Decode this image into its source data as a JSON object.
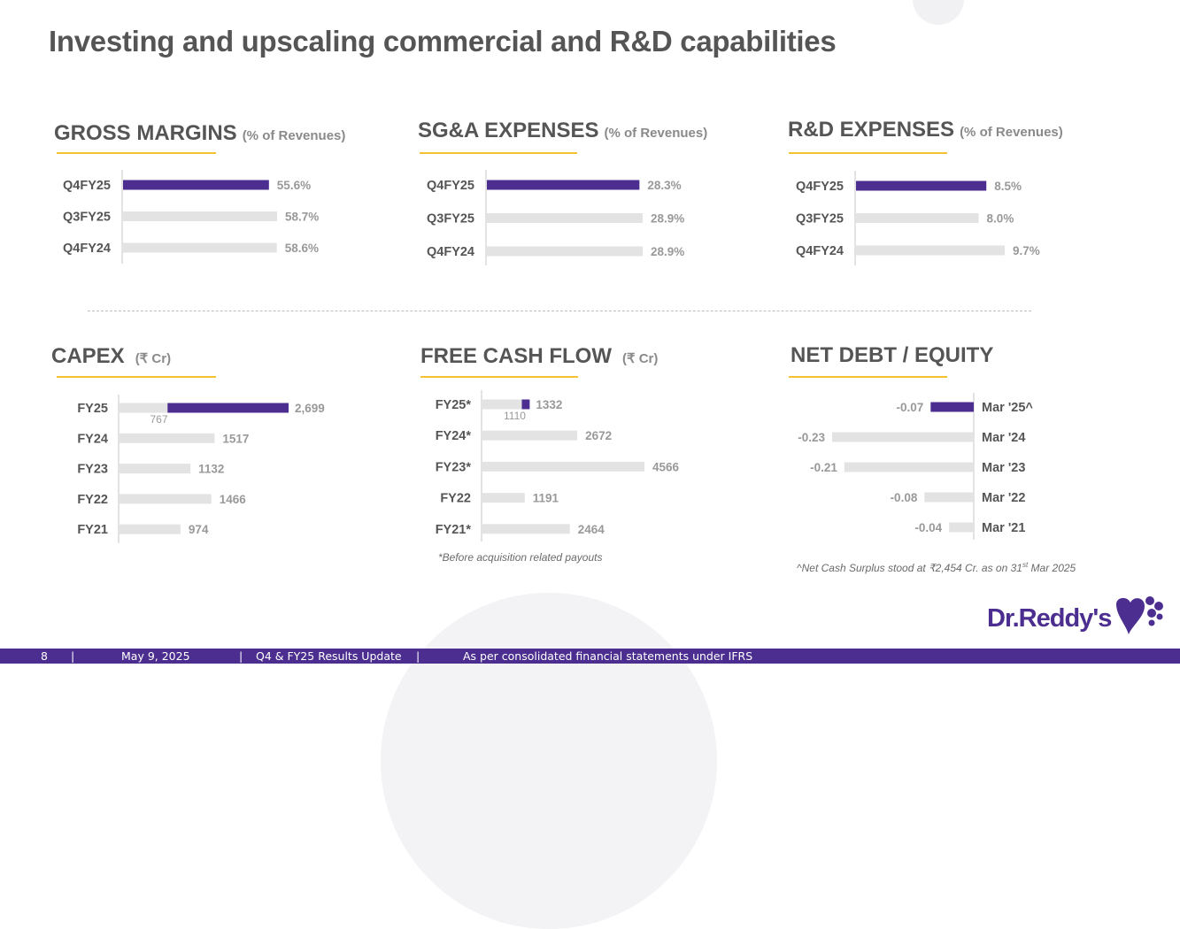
{
  "page": {
    "title": "Investing and upscaling commercial and R&D capabilities"
  },
  "colors": {
    "accent": "#4b2e8f",
    "bar_gray": "#e3e3e3",
    "text_gray": "#555555",
    "value_gray": "#999999",
    "underline": "#f2c230"
  },
  "chart_data": [
    {
      "id": "gross",
      "type": "bar",
      "title": "GROSS MARGINS",
      "subtitle": "(% of Revenues)",
      "categories": [
        "Q4FY25",
        "Q3FY25",
        "Q4FY24"
      ],
      "values": [
        55.6,
        58.7,
        58.6
      ],
      "labels": [
        "55.6%",
        "58.7%",
        "58.6%"
      ],
      "highlight": [
        0
      ]
    },
    {
      "id": "sga",
      "type": "bar",
      "title": "SG&A EXPENSES",
      "subtitle": "(% of Revenues)",
      "categories": [
        "Q4FY25",
        "Q3FY25",
        "Q4FY24"
      ],
      "values": [
        28.3,
        28.9,
        28.9
      ],
      "labels": [
        "28.3%",
        "28.9%",
        "28.9%"
      ],
      "highlight": [
        0
      ]
    },
    {
      "id": "rnd",
      "type": "bar",
      "title": "R&D EXPENSES",
      "subtitle": "(% of Revenues)",
      "categories": [
        "Q4FY25",
        "Q3FY25",
        "Q4FY24"
      ],
      "values": [
        8.5,
        8.0,
        9.7
      ],
      "labels": [
        "8.5%",
        "8.0%",
        "9.7%"
      ],
      "highlight": [
        0
      ]
    },
    {
      "id": "capex",
      "type": "bar",
      "title": "CAPEX",
      "subtitle": "(₹ Cr)",
      "categories": [
        "FY25",
        "FY24",
        "FY23",
        "FY22",
        "FY21"
      ],
      "values": [
        2699,
        1517,
        1132,
        1466,
        974
      ],
      "labels": [
        "2,699",
        "1517",
        "1132",
        "1466",
        "974"
      ],
      "stack": {
        "index": 0,
        "base_value": 767,
        "base_label": "767"
      }
    },
    {
      "id": "fcf",
      "type": "bar",
      "title": "FREE CASH FLOW",
      "subtitle": "(₹ Cr)",
      "categories": [
        "FY25*",
        "FY24*",
        "FY23*",
        "FY22",
        "FY21*"
      ],
      "values": [
        1332,
        2672,
        4566,
        1191,
        2464
      ],
      "labels": [
        "1332",
        "2672",
        "4566",
        "1191",
        "2464"
      ],
      "stack": {
        "index": 0,
        "base_value": 1110,
        "base_label": "1110"
      },
      "footnote": "*Before acquisition related payouts"
    },
    {
      "id": "netdebt",
      "type": "bar",
      "title": "NET DEBT / EQUITY",
      "subtitle": "",
      "categories": [
        "Mar '25^",
        "Mar '24",
        "Mar '23",
        "Mar '22",
        "Mar '21"
      ],
      "values": [
        -0.07,
        -0.23,
        -0.21,
        -0.08,
        -0.04
      ],
      "labels": [
        "-0.07",
        "-0.23",
        "-0.21",
        "-0.08",
        "-0.04"
      ],
      "highlight": [
        0
      ],
      "footnote_pre": "^Net Cash Surplus stood at ₹2,454 Cr. as on 31",
      "footnote_sup": "st",
      "footnote_post": " Mar 2025"
    }
  ],
  "logo": {
    "text": "Dr.Reddy's"
  },
  "footer": {
    "page_number": "8",
    "date": "May 9, 2025",
    "doc": "Q4 & FY25 Results Update",
    "note": "As per consolidated financial statements under IFRS",
    "sep": "|"
  }
}
